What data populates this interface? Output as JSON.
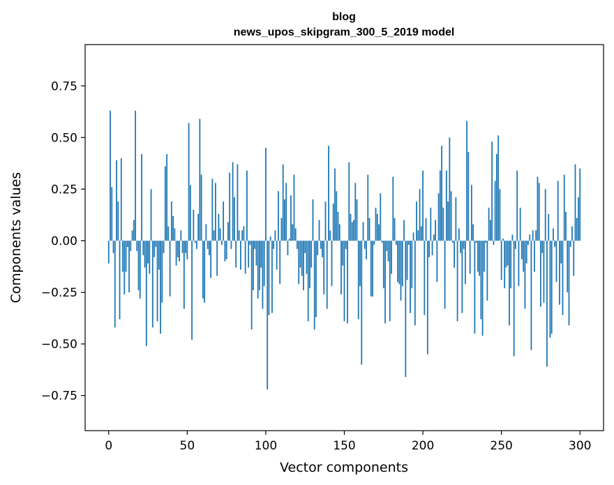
{
  "chart_data": {
    "type": "bar",
    "title": "blog",
    "subtitle": "news_upos_skipgram_300_5_2019 model",
    "xlabel": "Vector components",
    "ylabel": "Components values",
    "xlim": [
      -15,
      315
    ],
    "ylim": [
      -0.92,
      0.95
    ],
    "xticks": [
      0,
      50,
      100,
      150,
      200,
      250,
      300
    ],
    "xtick_labels": [
      "0",
      "50",
      "100",
      "150",
      "200",
      "250",
      "300"
    ],
    "yticks": [
      -0.75,
      -0.5,
      -0.25,
      0.0,
      0.25,
      0.5,
      0.75
    ],
    "ytick_labels": [
      "−0.75",
      "−0.50",
      "−0.25",
      "0.00",
      "0.25",
      "0.50",
      "0.75"
    ],
    "bar_color": "#1f77b4",
    "grid": false,
    "legend": "none",
    "values": [
      -0.11,
      0.63,
      0.26,
      -0.06,
      -0.42,
      0.39,
      0.19,
      -0.38,
      0.4,
      -0.15,
      -0.26,
      -0.15,
      -0.03,
      -0.25,
      -0.05,
      0.05,
      0.1,
      0.63,
      -0.05,
      -0.24,
      -0.28,
      0.42,
      -0.07,
      -0.13,
      -0.51,
      -0.11,
      -0.16,
      0.25,
      -0.42,
      -0.08,
      -0.03,
      -0.39,
      -0.14,
      -0.45,
      -0.3,
      -0.06,
      0.36,
      0.42,
      0.07,
      -0.27,
      0.19,
      0.12,
      0.06,
      -0.12,
      -0.08,
      -0.1,
      0.05,
      -0.06,
      -0.33,
      -0.06,
      -0.09,
      0.57,
      0.27,
      -0.48,
      0.15,
      -0.01,
      -0.04,
      0.13,
      0.59,
      0.32,
      -0.28,
      -0.3,
      0.08,
      -0.04,
      -0.07,
      -0.18,
      0.3,
      0.05,
      0.28,
      -0.17,
      0.13,
      0.06,
      -0.02,
      0.19,
      -0.1,
      -0.09,
      0.09,
      0.33,
      -0.04,
      0.38,
      0.21,
      -0.13,
      0.37,
      0.05,
      -0.14,
      0.05,
      0.07,
      -0.16,
      0.34,
      -0.13,
      -0.02,
      -0.43,
      -0.24,
      -0.04,
      -0.12,
      -0.28,
      -0.24,
      -0.13,
      -0.33,
      -0.22,
      0.45,
      -0.72,
      -0.36,
      0.02,
      -0.35,
      -0.04,
      0.05,
      -0.14,
      0.24,
      -0.21,
      0.11,
      0.37,
      0.2,
      0.28,
      -0.07,
      0.01,
      0.22,
      0.08,
      0.32,
      0.06,
      -0.04,
      -0.21,
      -0.13,
      -0.17,
      -0.24,
      -0.06,
      -0.16,
      -0.39,
      -0.23,
      -0.13,
      0.2,
      -0.43,
      -0.37,
      -0.07,
      0.1,
      -0.04,
      -0.08,
      -0.26,
      0.19,
      -0.33,
      0.46,
      0.05,
      -0.22,
      0.18,
      0.35,
      0.24,
      0.14,
      0.08,
      -0.26,
      -0.12,
      -0.39,
      -0.04,
      -0.4,
      0.38,
      0.13,
      0.09,
      0.1,
      0.28,
      0.2,
      -0.38,
      -0.22,
      -0.6,
      0.09,
      -0.04,
      -0.09,
      0.32,
      0.11,
      -0.27,
      -0.27,
      -0.02,
      0.16,
      0.13,
      0.08,
      0.23,
      -0.01,
      -0.23,
      -0.4,
      -0.05,
      -0.1,
      -0.39,
      -0.16,
      0.31,
      0.11,
      -0.02,
      -0.2,
      -0.21,
      -0.29,
      -0.22,
      0.1,
      -0.66,
      -0.19,
      -0.02,
      -0.35,
      -0.23,
      0.04,
      -0.41,
      0.19,
      0.05,
      0.25,
      0.07,
      0.34,
      -0.36,
      0.11,
      -0.55,
      -0.08,
      0.16,
      -0.07,
      0.03,
      0.1,
      -0.2,
      0.23,
      0.34,
      0.46,
      0.16,
      -0.33,
      0.34,
      0.19,
      0.5,
      0.24,
      -0.01,
      -0.13,
      0.21,
      -0.39,
      0.06,
      -0.06,
      -0.35,
      -0.04,
      -0.21,
      0.58,
      0.43,
      -0.16,
      0.27,
      0.08,
      -0.45,
      -0.01,
      -0.15,
      -0.17,
      -0.38,
      -0.46,
      -0.15,
      -0.01,
      -0.29,
      0.16,
      0.1,
      0.48,
      -0.02,
      0.29,
      0.42,
      0.51,
      0.25,
      -0.19,
      0.01,
      -0.23,
      -0.13,
      -0.12,
      -0.41,
      -0.23,
      0.03,
      -0.56,
      -0.04,
      0.34,
      -0.22,
      0.16,
      -0.09,
      -0.15,
      -0.33,
      -0.11,
      -0.02,
      0.03,
      -0.53,
      0.05,
      -0.15,
      0.05,
      0.31,
      0.28,
      -0.32,
      -0.06,
      -0.3,
      0.25,
      -0.61,
      0.13,
      -0.47,
      -0.45,
      0.06,
      -0.03,
      -0.2,
      0.29,
      -0.31,
      -0.11,
      -0.36,
      0.32,
      0.14,
      -0.25,
      -0.41,
      -0.03,
      0.07,
      -0.17,
      0.37,
      0.11,
      0.21,
      0.35
    ]
  }
}
